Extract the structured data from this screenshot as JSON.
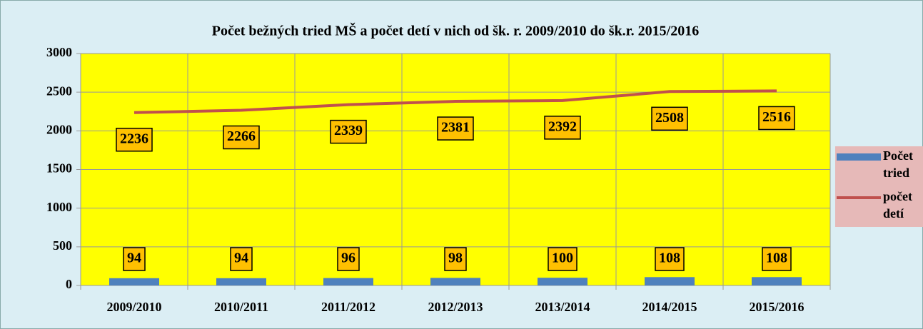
{
  "chart_data": {
    "type": "combo",
    "title": "Počet bežných tried  MŠ a  počet detí v nich od šk. r. 2009/2010 do šk.r. 2015/2016",
    "categories": [
      "2009/2010",
      "2010/2011",
      "2011/2012",
      "2012/2013",
      "2013/2014",
      "2014/2015",
      "2015/2016"
    ],
    "series": [
      {
        "name": "Počet tried",
        "type": "bar",
        "color": "#4f81bd",
        "values": [
          94,
          94,
          96,
          98,
          100,
          108,
          108
        ]
      },
      {
        "name": "počet detí",
        "type": "line",
        "color": "#c0504d",
        "values": [
          2236,
          2266,
          2339,
          2381,
          2392,
          2508,
          2516
        ]
      }
    ],
    "ylim": [
      0,
      3000
    ],
    "yticks": [
      0,
      500,
      1000,
      1500,
      2000,
      2500,
      3000
    ],
    "grid": true,
    "legend": "right"
  }
}
